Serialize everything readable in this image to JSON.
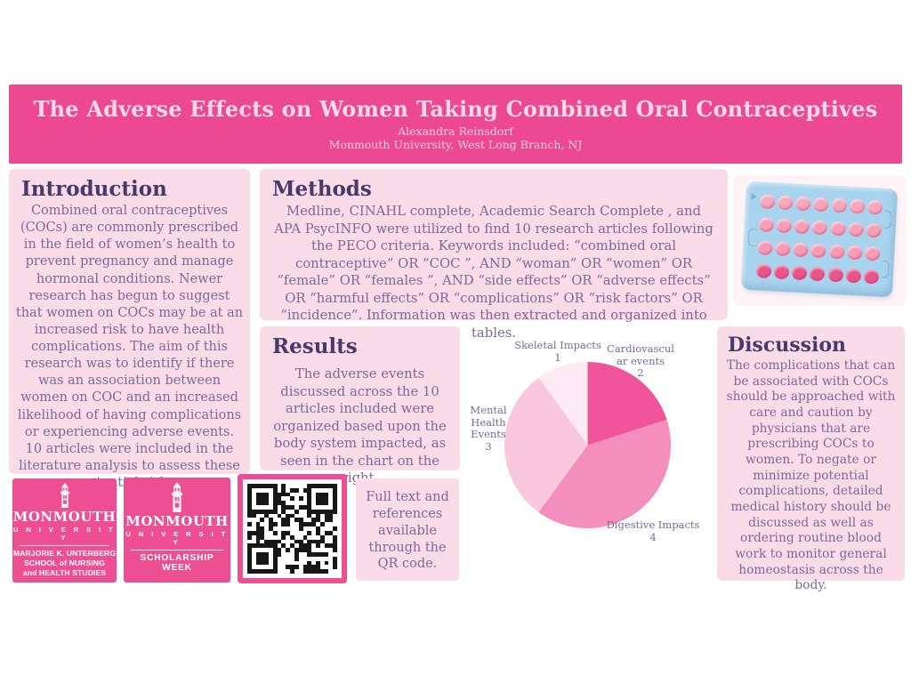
{
  "header": {
    "title": "The Adverse Effects on Women Taking Combined Oral Contraceptives",
    "author": "Alexandra Reinsdorf",
    "affiliation": "Monmouth University, West Long Branch, NJ"
  },
  "sections": {
    "introduction": {
      "heading": "Introduction",
      "body": "Combined oral contraceptives (COCs) are commonly prescribed in the field of women’s health to prevent pregnancy and manage hormonal conditions. Newer research has begun to suggest that women on COCs may be at an increased risk to have health complications. The aim of this research was to identify if there was an association between women on COC and an increased likelihood of having complications or experiencing adverse events. 10 articles were included in the literature analysis to assess these potential risks."
    },
    "methods": {
      "heading": "Methods",
      "body": "Medline, CINAHL complete, Academic Search Complete , and APA PsycINFO were utilized to find 10 research articles following the PECO criteria. Keywords included:  “combined oral contraceptive” OR “COC ”,  AND “woman” OR “women” OR “female” OR “females ”,  AND  “side effects” OR “adverse effects” OR “harmful effects” OR “complications” OR “risk factors” OR “incidence”. Information was then extracted and organized into tables."
    },
    "results": {
      "heading": "Results",
      "body": "The adverse events discussed across the 10 articles included were organized based upon the body system impacted, as seen in the chart on the right."
    },
    "discussion": {
      "heading": "Discussion",
      "body": "The complications that can be associated with COCs should be approached with care and caution by physicians that are prescribing COCs to women. To negate or minimize potential complications, detailed medical history should be discussed as well as ordering routine blood work to monitor general homeostasis across the body."
    },
    "qr_note": "Full text and references available through the QR code."
  },
  "logos": {
    "nursing_school": {
      "university": "MONMOUTH",
      "university_sub": "U N I V E R S I T Y",
      "dept_line1": "MARJORIE K. UNTERBERG",
      "dept_line2": "SCHOOL of NURSING",
      "dept_line3": "and HEALTH STUDIES"
    },
    "scholarship_week": {
      "university": "MONMOUTH",
      "university_sub": "U N I V E R S I T Y",
      "event": "SCHOLARSHIP WEEK"
    }
  },
  "chart_data": {
    "type": "pie",
    "title": "",
    "labels": [
      "Cardiovascular events",
      "Digestive Impacts",
      "Mental Health Events",
      "Skeletal Impacts"
    ],
    "values": [
      2,
      4,
      3,
      1
    ],
    "colors": [
      "#f0559b",
      "#f48ebc",
      "#f9c8dd",
      "#fdeaf2"
    ],
    "start_angle_deg": 0,
    "direction": "clockwise",
    "legend": "none",
    "label_lines": {
      "cardiovascular": [
        "Cardiovascul",
        "ar events",
        "2"
      ],
      "digestive": [
        "Digestive Impacts",
        "4"
      ],
      "mental": [
        "Mental",
        "Health",
        "Events",
        "3"
      ],
      "skeletal": [
        "Skeletal Impacts",
        "1"
      ]
    }
  },
  "illustration": {
    "pill_pack": {
      "rows": 4,
      "cols": 7,
      "pack_color": "#a9d4ee",
      "row_colors": [
        "#f8a7bd",
        "#f7a0b8",
        "#f69cb6",
        "#e9548a"
      ]
    }
  },
  "colors": {
    "header_pink": "#ed4892",
    "panel_pink": "#fadce8",
    "heading_purple": "#463a6a",
    "body_purple": "#7d6896",
    "logo_pink": "#ee4f92",
    "qr_module": "#171717"
  }
}
